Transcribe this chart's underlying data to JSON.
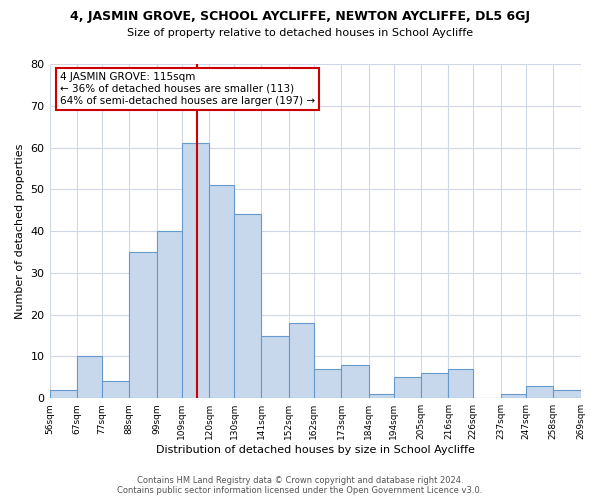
{
  "title": "4, JASMIN GROVE, SCHOOL AYCLIFFE, NEWTON AYCLIFFE, DL5 6GJ",
  "subtitle": "Size of property relative to detached houses in School Aycliffe",
  "xlabel": "Distribution of detached houses by size in School Aycliffe",
  "ylabel": "Number of detached properties",
  "bin_edges": [
    56,
    67,
    77,
    88,
    99,
    109,
    120,
    130,
    141,
    152,
    162,
    173,
    184,
    194,
    205,
    216,
    226,
    237,
    247,
    258,
    269
  ],
  "counts": [
    2,
    10,
    4,
    35,
    40,
    61,
    51,
    44,
    15,
    18,
    7,
    8,
    1,
    5,
    6,
    7,
    0,
    1,
    3,
    2
  ],
  "bar_color": "#c8d8ec",
  "bar_edge_color": "#6699cc",
  "vline_x": 115,
  "vline_color": "#cc0000",
  "annotation_text": "4 JASMIN GROVE: 115sqm\n← 36% of detached houses are smaller (113)\n64% of semi-detached houses are larger (197) →",
  "annotation_box_color": "white",
  "annotation_box_edge_color": "#cc0000",
  "ylim": [
    0,
    80
  ],
  "yticks": [
    0,
    10,
    20,
    30,
    40,
    50,
    60,
    70,
    80
  ],
  "tick_labels": [
    "56sqm",
    "67sqm",
    "77sqm",
    "88sqm",
    "99sqm",
    "109sqm",
    "120sqm",
    "130sqm",
    "141sqm",
    "152sqm",
    "162sqm",
    "173sqm",
    "184sqm",
    "194sqm",
    "205sqm",
    "216sqm",
    "226sqm",
    "237sqm",
    "247sqm",
    "258sqm",
    "269sqm"
  ],
  "footer_text": "Contains HM Land Registry data © Crown copyright and database right 2024.\nContains public sector information licensed under the Open Government Licence v3.0.",
  "background_color": "#ffffff",
  "grid_color": "#d0d8e8"
}
